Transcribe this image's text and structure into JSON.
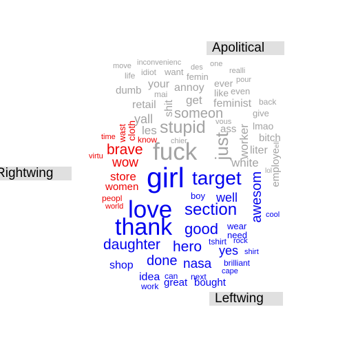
{
  "colors": {
    "apolitical": "#a3a3a3",
    "rightwing": "#ee0000",
    "leftwing": "#0000ee",
    "label_bg": "#e0e0e0"
  },
  "labels": {
    "apolitical": "Apolitical",
    "rightwing": "Rightwing",
    "leftwing": "Leftwing"
  },
  "words": [
    {
      "text": "move",
      "group": "apolitical"
    },
    {
      "text": "inconvenienc",
      "group": "apolitical"
    },
    {
      "text": "des",
      "group": "apolitical"
    },
    {
      "text": "one",
      "group": "apolitical"
    },
    {
      "text": "life",
      "group": "apolitical"
    },
    {
      "text": "idiot",
      "group": "apolitical"
    },
    {
      "text": "want",
      "group": "apolitical"
    },
    {
      "text": "femin",
      "group": "apolitical"
    },
    {
      "text": "realli",
      "group": "apolitical"
    },
    {
      "text": "pour",
      "group": "apolitical"
    },
    {
      "text": "your",
      "group": "apolitical"
    },
    {
      "text": "ever",
      "group": "apolitical"
    },
    {
      "text": "dumb",
      "group": "apolitical"
    },
    {
      "text": "annoy",
      "group": "apolitical"
    },
    {
      "text": "like",
      "group": "apolitical"
    },
    {
      "text": "even",
      "group": "apolitical"
    },
    {
      "text": "mai",
      "group": "apolitical"
    },
    {
      "text": "get",
      "group": "apolitical"
    },
    {
      "text": "back",
      "group": "apolitical"
    },
    {
      "text": "retail",
      "group": "apolitical"
    },
    {
      "text": "shit",
      "group": "apolitical"
    },
    {
      "text": "feminist",
      "group": "apolitical"
    },
    {
      "text": "yall",
      "group": "apolitical"
    },
    {
      "text": "someon",
      "group": "apolitical"
    },
    {
      "text": "give",
      "group": "apolitical"
    },
    {
      "text": "vous",
      "group": "apolitical"
    },
    {
      "text": "lmao",
      "group": "apolitical"
    },
    {
      "text": "les",
      "group": "apolitical"
    },
    {
      "text": "stupid",
      "group": "apolitical"
    },
    {
      "text": "ass",
      "group": "apolitical"
    },
    {
      "text": "chier",
      "group": "apolitical"
    },
    {
      "text": "bitch",
      "group": "apolitical"
    },
    {
      "text": "worker",
      "group": "apolitical"
    },
    {
      "text": "fuck",
      "group": "apolitical"
    },
    {
      "text": "just",
      "group": "apolitical"
    },
    {
      "text": "liter",
      "group": "apolitical"
    },
    {
      "text": "ell",
      "group": "apolitical"
    },
    {
      "text": "white",
      "group": "apolitical"
    },
    {
      "text": "lol",
      "group": "apolitical"
    },
    {
      "text": "employe",
      "group": "apolitical"
    },
    {
      "text": "wast",
      "group": "rightwing"
    },
    {
      "text": "cloth",
      "group": "rightwing"
    },
    {
      "text": "time",
      "group": "rightwing"
    },
    {
      "text": "know",
      "group": "rightwing"
    },
    {
      "text": "brave",
      "group": "rightwing"
    },
    {
      "text": "virtu",
      "group": "rightwing"
    },
    {
      "text": "wow",
      "group": "rightwing"
    },
    {
      "text": "store",
      "group": "rightwing"
    },
    {
      "text": "women",
      "group": "rightwing"
    },
    {
      "text": "peopl",
      "group": "rightwing"
    },
    {
      "text": "world",
      "group": "rightwing"
    },
    {
      "text": "girl",
      "group": "leftwing"
    },
    {
      "text": "target",
      "group": "leftwing"
    },
    {
      "text": "boy",
      "group": "leftwing"
    },
    {
      "text": "well",
      "group": "leftwing"
    },
    {
      "text": "awesom",
      "group": "leftwing"
    },
    {
      "text": "love",
      "group": "leftwing"
    },
    {
      "text": "section",
      "group": "leftwing"
    },
    {
      "text": "cool",
      "group": "leftwing"
    },
    {
      "text": "thank",
      "group": "leftwing"
    },
    {
      "text": "good",
      "group": "leftwing"
    },
    {
      "text": "wear",
      "group": "leftwing"
    },
    {
      "text": "need",
      "group": "leftwing"
    },
    {
      "text": "daughter",
      "group": "leftwing"
    },
    {
      "text": "hero",
      "group": "leftwing"
    },
    {
      "text": "tshirt",
      "group": "leftwing"
    },
    {
      "text": "rock",
      "group": "leftwing"
    },
    {
      "text": "yes",
      "group": "leftwing"
    },
    {
      "text": "shirt",
      "group": "leftwing"
    },
    {
      "text": "done",
      "group": "leftwing"
    },
    {
      "text": "nasa",
      "group": "leftwing"
    },
    {
      "text": "shop",
      "group": "leftwing"
    },
    {
      "text": "brilliant",
      "group": "leftwing"
    },
    {
      "text": "cape",
      "group": "leftwing"
    },
    {
      "text": "idea",
      "group": "leftwing"
    },
    {
      "text": "can",
      "group": "leftwing"
    },
    {
      "text": "next",
      "group": "leftwing"
    },
    {
      "text": "work",
      "group": "leftwing"
    },
    {
      "text": "great",
      "group": "leftwing"
    },
    {
      "text": "bought",
      "group": "leftwing"
    }
  ]
}
